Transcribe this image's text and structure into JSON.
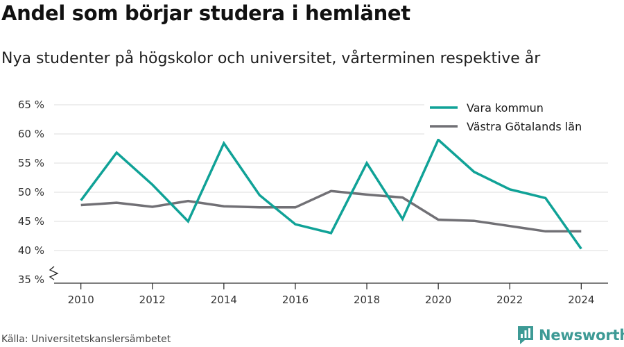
{
  "header": {
    "title": "Andel som börjar studera i hemlänet",
    "subtitle": "Nya studenter på högskolor och universitet, vårterminen respektive år"
  },
  "footer": {
    "source": "Källa: Universitetskanslersämbetet",
    "brand": "Newsworthy",
    "brand_icon": "bar-chart-logo-icon",
    "brand_color": "#3d9a95"
  },
  "colors": {
    "vara": "#10a297",
    "vastra": "#717075",
    "grid": "#dcdcdc",
    "axis": "#333333"
  },
  "chart_data": {
    "type": "line",
    "title": "Andel som börjar studera i hemlänet",
    "subtitle": "Nya studenter på högskolor och universitet, vårterminen respektive år",
    "xlabel": "",
    "ylabel": "",
    "x": [
      2010,
      2011,
      2012,
      2013,
      2014,
      2015,
      2016,
      2017,
      2018,
      2019,
      2020,
      2021,
      2022,
      2023,
      2024
    ],
    "xticks": [
      "2010",
      "2012",
      "2014",
      "2016",
      "2018",
      "2020",
      "2022",
      "2024"
    ],
    "yticks": [
      "35 %",
      "40 %",
      "45 %",
      "50 %",
      "55 %",
      "60 %",
      "65 %"
    ],
    "ylim": [
      35,
      65
    ],
    "y_axis_break": true,
    "grid": true,
    "legend_position": "top-right",
    "series": [
      {
        "name": "Vara kommun",
        "color": "#10a297",
        "values": [
          48.6,
          56.8,
          51.3,
          45.0,
          58.4,
          49.5,
          44.5,
          43.0,
          55.0,
          45.4,
          59.0,
          53.5,
          50.5,
          49.0,
          40.3
        ]
      },
      {
        "name": "Västra Götalands län",
        "color": "#717075",
        "values": [
          47.8,
          48.2,
          47.5,
          48.5,
          47.6,
          47.4,
          47.4,
          50.2,
          49.6,
          49.1,
          45.3,
          45.1,
          44.2,
          43.3,
          43.3
        ]
      }
    ]
  }
}
